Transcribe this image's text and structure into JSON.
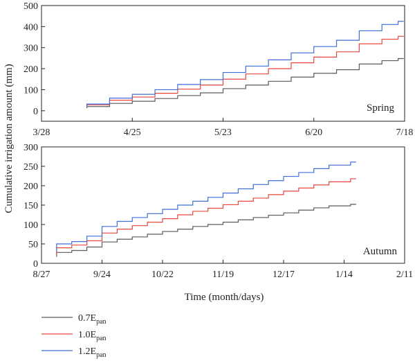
{
  "chart_data": [
    {
      "type": "line",
      "step": true,
      "panel_label": "Spring",
      "xlim": [
        "2013-03-28",
        "2013-07-18"
      ],
      "x_ticks": [
        "3/28",
        "4/25",
        "5/23",
        "6/20",
        "7/18"
      ],
      "ylim": [
        -50,
        500
      ],
      "y_ticks": [
        "0",
        "100",
        "200",
        "300",
        "400",
        "500"
      ],
      "series": [
        {
          "name": "0.7E_pan",
          "color": "#5a5a5a",
          "x": [
            "2013-04-11",
            "2013-04-18",
            "2013-04-25",
            "2013-05-02",
            "2013-05-09",
            "2013-05-16",
            "2013-05-23",
            "2013-05-30",
            "2013-06-06",
            "2013-06-13",
            "2013-06-20",
            "2013-06-27",
            "2013-07-04",
            "2013-07-11",
            "2013-07-16"
          ],
          "y": [
            20,
            35,
            45,
            58,
            72,
            85,
            105,
            122,
            140,
            160,
            178,
            195,
            222,
            238,
            248
          ]
        },
        {
          "name": "1.0E_pan",
          "color": "#e8453c",
          "x": [
            "2013-04-11",
            "2013-04-18",
            "2013-04-25",
            "2013-05-02",
            "2013-05-09",
            "2013-05-16",
            "2013-05-23",
            "2013-05-30",
            "2013-06-06",
            "2013-06-13",
            "2013-06-20",
            "2013-06-27",
            "2013-07-04",
            "2013-07-11",
            "2013-07-16"
          ],
          "y": [
            28,
            50,
            65,
            83,
            103,
            122,
            150,
            175,
            200,
            228,
            255,
            280,
            318,
            340,
            354
          ]
        },
        {
          "name": "1.2E_pan",
          "color": "#3f6fd8",
          "x": [
            "2013-04-11",
            "2013-04-18",
            "2013-04-25",
            "2013-05-02",
            "2013-05-09",
            "2013-05-16",
            "2013-05-23",
            "2013-05-30",
            "2013-06-06",
            "2013-06-13",
            "2013-06-20",
            "2013-06-27",
            "2013-07-04",
            "2013-07-11",
            "2013-07-16"
          ],
          "y": [
            32,
            60,
            78,
            100,
            125,
            148,
            182,
            212,
            242,
            275,
            305,
            335,
            380,
            410,
            425
          ]
        }
      ]
    },
    {
      "type": "line",
      "step": true,
      "panel_label": "Autumn",
      "xlim": [
        "2013-08-27",
        "2014-02-11"
      ],
      "x_ticks": [
        "8/27",
        "9/24",
        "10/22",
        "11/19",
        "12/17",
        "1/14",
        "2/11"
      ],
      "ylim": [
        0,
        300
      ],
      "y_ticks": [
        "0",
        "50",
        "100",
        "150",
        "200",
        "250",
        "300"
      ],
      "series": [
        {
          "name": "0.7E_pan",
          "color": "#5a5a5a",
          "x": [
            "2013-09-03",
            "2013-09-10",
            "2013-09-17",
            "2013-09-24",
            "2013-10-01",
            "2013-10-08",
            "2013-10-15",
            "2013-10-22",
            "2013-10-29",
            "2013-11-05",
            "2013-11-12",
            "2013-11-19",
            "2013-11-26",
            "2013-12-03",
            "2013-12-10",
            "2013-12-17",
            "2013-12-24",
            "2013-12-31",
            "2014-01-07",
            "2014-01-17"
          ],
          "y": [
            28,
            33,
            42,
            55,
            62,
            68,
            75,
            82,
            88,
            95,
            100,
            106,
            112,
            118,
            124,
            130,
            137,
            143,
            148,
            152
          ]
        },
        {
          "name": "1.0E_pan",
          "color": "#e8453c",
          "x": [
            "2013-09-03",
            "2013-09-10",
            "2013-09-17",
            "2013-09-24",
            "2013-10-01",
            "2013-10-08",
            "2013-10-15",
            "2013-10-22",
            "2013-10-29",
            "2013-11-05",
            "2013-11-12",
            "2013-11-19",
            "2013-11-26",
            "2013-12-03",
            "2013-12-10",
            "2013-12-17",
            "2013-12-24",
            "2013-12-31",
            "2014-01-07",
            "2014-01-17"
          ],
          "y": [
            40,
            47,
            58,
            78,
            88,
            97,
            106,
            115,
            125,
            134,
            142,
            151,
            160,
            168,
            177,
            186,
            194,
            202,
            210,
            218
          ]
        },
        {
          "name": "1.2E_pan",
          "color": "#3f6fd8",
          "x": [
            "2013-09-03",
            "2013-09-10",
            "2013-09-17",
            "2013-09-24",
            "2013-10-01",
            "2013-10-08",
            "2013-10-15",
            "2013-10-22",
            "2013-10-29",
            "2013-11-05",
            "2013-11-12",
            "2013-11-19",
            "2013-11-26",
            "2013-12-03",
            "2013-12-10",
            "2013-12-17",
            "2013-12-24",
            "2013-12-31",
            "2014-01-07",
            "2014-01-17"
          ],
          "y": [
            50,
            56,
            70,
            95,
            108,
            118,
            128,
            139,
            150,
            160,
            170,
            181,
            192,
            203,
            213,
            224,
            234,
            244,
            253,
            261
          ]
        }
      ]
    }
  ],
  "ylabel": "Cumulative irrigation amount (mm)",
  "xlabel": "Time (month/days)",
  "legend": [
    {
      "label": "0.7E",
      "sub": "pan",
      "color": "#5a5a5a"
    },
    {
      "label": "1.0E",
      "sub": "pan",
      "color": "#e8453c"
    },
    {
      "label": "1.2E",
      "sub": "pan",
      "color": "#3f6fd8"
    }
  ]
}
